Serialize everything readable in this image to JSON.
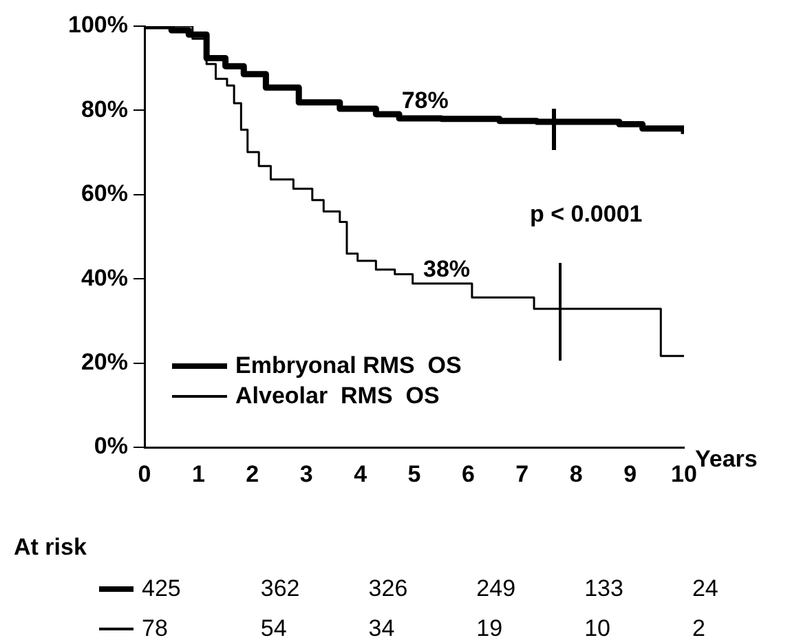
{
  "chart_data": {
    "type": "step",
    "xlabel": "Years",
    "xlim": [
      0,
      10
    ],
    "xticks": [
      0,
      1,
      2,
      3,
      4,
      5,
      6,
      7,
      8,
      9,
      10
    ],
    "ylim": [
      0,
      100
    ],
    "yticks": [
      {
        "value": 0,
        "label": "0%"
      },
      {
        "value": 20,
        "label": "20%"
      },
      {
        "value": 40,
        "label": "40%"
      },
      {
        "value": 60,
        "label": "60%"
      },
      {
        "value": 80,
        "label": "80%"
      },
      {
        "value": 100,
        "label": "100%"
      }
    ],
    "grid": false,
    "legend": "bottom left",
    "marker": "none",
    "series": [
      {
        "name": "Embryonal RMS  OS",
        "color": "#000000",
        "x": [
          0,
          0.5,
          0.82,
          1.15,
          1.5,
          1.84,
          2.25,
          2.86,
          3.62,
          4.29,
          4.72,
          5.5,
          6.58,
          7.27,
          8.8,
          9.23,
          10
        ],
        "values": [
          100,
          99,
          98,
          92.4,
          90.5,
          88.6,
          85.4,
          81.9,
          80.4,
          79.1,
          78.1,
          78,
          77.5,
          77.3,
          76.7,
          75.7,
          74.4
        ]
      },
      {
        "name": "Alveolar  RMS  OS",
        "color": "#000000",
        "x": [
          0,
          0.89,
          1.15,
          1.32,
          1.53,
          1.66,
          1.79,
          1.91,
          2.12,
          2.34,
          2.76,
          3.11,
          3.32,
          3.62,
          3.75,
          3.95,
          4.29,
          4.64,
          4.97,
          6.07,
          7.22,
          9.57,
          10
        ],
        "values": [
          100,
          97,
          91,
          87.5,
          85.9,
          81.7,
          75.4,
          70.1,
          66.8,
          63.6,
          61.4,
          58.7,
          56,
          53.5,
          46,
          44.3,
          42.2,
          41.1,
          38.9,
          35.6,
          32.9,
          21.7,
          21.7
        ]
      }
    ],
    "annotations": [
      {
        "text": "78%",
        "x": 5.2,
        "y": 78
      },
      {
        "text": "38%",
        "x": 5.6,
        "y": 38
      },
      "p < 0.0001",
      "At risk",
      "425 362 326 249 133 24",
      "78 54 34 19 10 2"
    ]
  }
}
